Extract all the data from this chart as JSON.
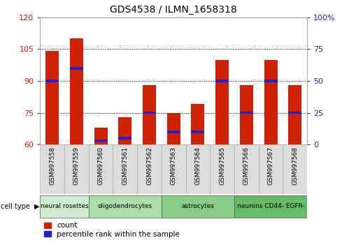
{
  "title": "GDS4538 / ILMN_1658318",
  "samples": [
    "GSM997558",
    "GSM997559",
    "GSM997560",
    "GSM997561",
    "GSM997562",
    "GSM997563",
    "GSM997564",
    "GSM997565",
    "GSM997566",
    "GSM997567",
    "GSM997568"
  ],
  "counts": [
    104,
    110,
    68,
    73,
    88,
    75,
    79,
    100,
    88,
    100,
    88
  ],
  "percentile_ranks": [
    50,
    60,
    3,
    5,
    25,
    10,
    10,
    50,
    25,
    50,
    25
  ],
  "ylim_left": [
    60,
    120
  ],
  "ylim_right": [
    0,
    100
  ],
  "yticks_left": [
    60,
    75,
    90,
    105,
    120
  ],
  "yticks_right": [
    0,
    25,
    50,
    75,
    100
  ],
  "yticklabels_right": [
    "0",
    "25",
    "50",
    "75",
    "100%"
  ],
  "bar_color": "#cc2200",
  "percentile_color": "#2222cc",
  "cell_types": [
    {
      "label": "neural rosettes",
      "start": 0,
      "end": 2,
      "color": "#cceecc"
    },
    {
      "label": "oligodendrocytes",
      "start": 2,
      "end": 5,
      "color": "#aaddaa"
    },
    {
      "label": "astrocytes",
      "start": 5,
      "end": 8,
      "color": "#88cc88"
    },
    {
      "label": "neurons CD44- EGFR-",
      "start": 8,
      "end": 11,
      "color": "#66bb66"
    }
  ],
  "tick_label_color_left": "#cc2200",
  "tick_label_color_right": "#2222cc",
  "bar_width": 0.55,
  "background_color": "#ffffff"
}
